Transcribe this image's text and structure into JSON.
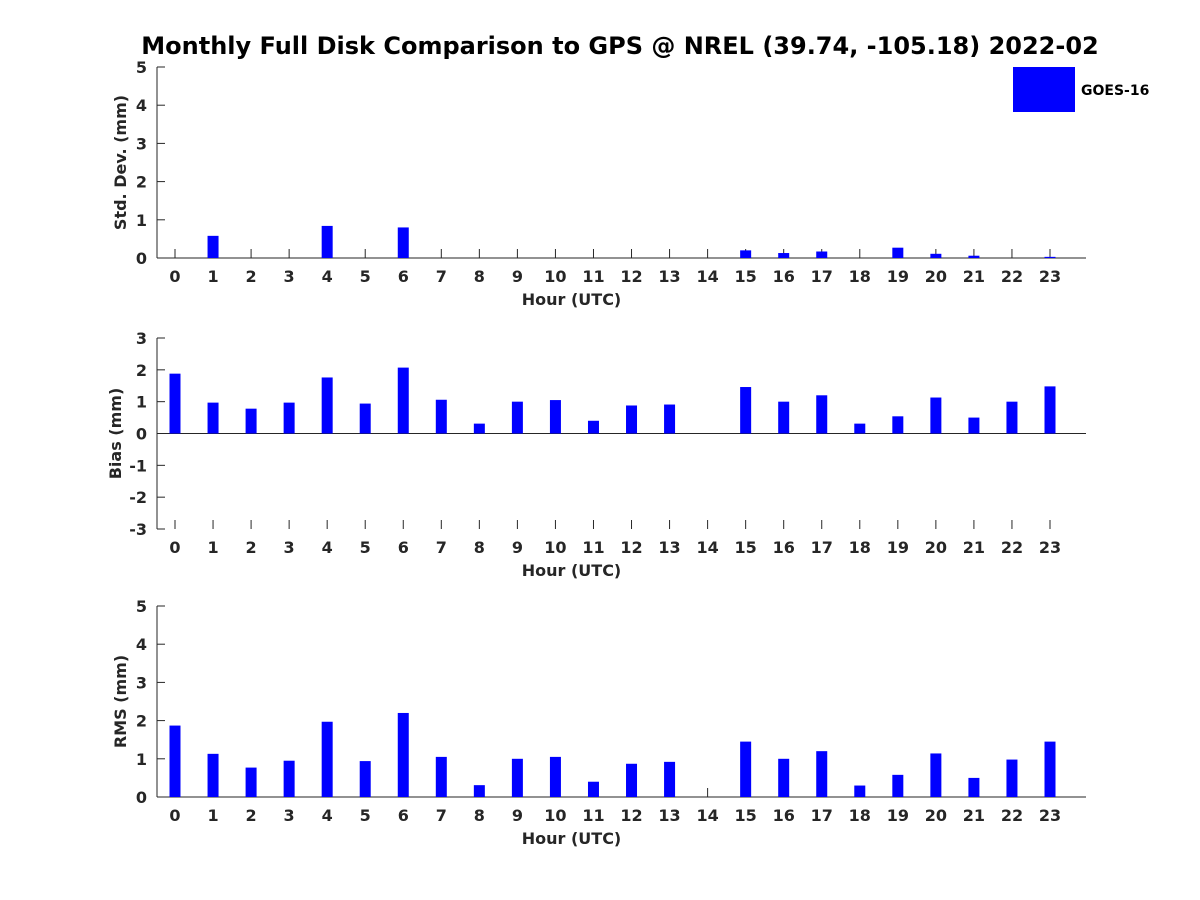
{
  "chart_title": "Monthly Full Disk Comparison to GPS @ NREL (39.74, -105.18) 2022-02",
  "legend": {
    "label": "GOES-16",
    "color": "#0000ff"
  },
  "chart_data": [
    {
      "type": "bar",
      "title": "Monthly Full Disk Comparison to GPS @ NREL (39.74, -105.18) 2022-02",
      "xlabel": "Hour (UTC)",
      "ylabel": "Std. Dev. (mm)",
      "categories": [
        "0",
        "1",
        "2",
        "3",
        "4",
        "5",
        "6",
        "7",
        "8",
        "9",
        "10",
        "11",
        "12",
        "13",
        "14",
        "15",
        "16",
        "17",
        "18",
        "19",
        "20",
        "21",
        "22",
        "23"
      ],
      "ylim": [
        0,
        5
      ],
      "yticks": [
        0,
        1,
        2,
        3,
        4,
        5
      ],
      "series": [
        {
          "name": "GOES-16",
          "color": "#0000ff",
          "values": [
            0,
            0.58,
            0,
            0,
            0.84,
            0,
            0.8,
            0,
            0,
            0,
            0,
            0,
            0,
            0,
            0,
            0.2,
            0.13,
            0.17,
            0,
            0.27,
            0.11,
            0.06,
            0,
            0.03
          ]
        }
      ],
      "legend_position": "top-right",
      "grid": false
    },
    {
      "type": "bar",
      "xlabel": "Hour (UTC)",
      "ylabel": "Bias (mm)",
      "categories": [
        "0",
        "1",
        "2",
        "3",
        "4",
        "5",
        "6",
        "7",
        "8",
        "9",
        "10",
        "11",
        "12",
        "13",
        "14",
        "15",
        "16",
        "17",
        "18",
        "19",
        "20",
        "21",
        "22",
        "23"
      ],
      "ylim": [
        -3,
        3
      ],
      "yticks": [
        -3,
        -2,
        -1,
        0,
        1,
        2,
        3
      ],
      "series": [
        {
          "name": "GOES-16",
          "color": "#0000ff",
          "values": [
            1.88,
            0.97,
            0.78,
            0.97,
            1.76,
            0.94,
            2.07,
            1.06,
            0.31,
            1.0,
            1.05,
            0.4,
            0.88,
            0.91,
            0,
            1.46,
            1.0,
            1.2,
            0.31,
            0.54,
            1.13,
            0.5,
            1.0,
            1.48
          ]
        }
      ],
      "grid": false
    },
    {
      "type": "bar",
      "xlabel": "Hour (UTC)",
      "ylabel": "RMS (mm)",
      "categories": [
        "0",
        "1",
        "2",
        "3",
        "4",
        "5",
        "6",
        "7",
        "8",
        "9",
        "10",
        "11",
        "12",
        "13",
        "14",
        "15",
        "16",
        "17",
        "18",
        "19",
        "20",
        "21",
        "22",
        "23"
      ],
      "ylim": [
        0,
        5
      ],
      "yticks": [
        0,
        1,
        2,
        3,
        4,
        5
      ],
      "series": [
        {
          "name": "GOES-16",
          "color": "#0000ff",
          "values": [
            1.87,
            1.13,
            0.77,
            0.95,
            1.97,
            0.94,
            2.2,
            1.05,
            0.31,
            1.0,
            1.05,
            0.4,
            0.87,
            0.92,
            0,
            1.45,
            1.0,
            1.2,
            0.3,
            0.58,
            1.14,
            0.5,
            0.98,
            1.45
          ]
        }
      ],
      "grid": false
    }
  ]
}
